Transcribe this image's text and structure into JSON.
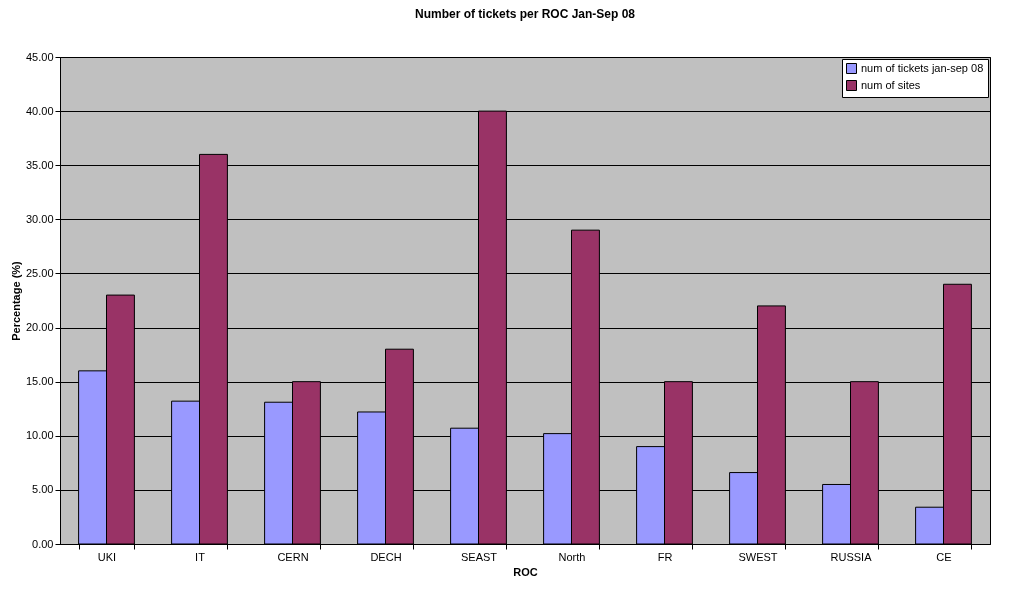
{
  "chart_data": {
    "type": "bar",
    "title": "Number of tickets per ROC Jan-Sep 08",
    "xlabel": "ROC",
    "ylabel": "Percentage (%)",
    "categories": [
      "UKI",
      "IT",
      "CERN",
      "DECH",
      "SEAST",
      "North",
      "FR",
      "SWEST",
      "RUSSIA",
      "CE"
    ],
    "series": [
      {
        "name": "num of tickets jan-sep 08",
        "color": "#9999ff",
        "values": [
          16.0,
          13.2,
          13.1,
          12.2,
          10.7,
          10.2,
          9.0,
          6.6,
          5.5,
          3.4
        ]
      },
      {
        "name": "num of sites",
        "color": "#993366",
        "values": [
          23,
          36,
          15,
          18,
          40,
          29,
          15,
          22,
          15,
          24
        ]
      }
    ],
    "ylim": [
      0,
      45
    ],
    "yticks": [
      {
        "value": 0,
        "label": "0.00"
      },
      {
        "value": 5,
        "label": "5.00"
      },
      {
        "value": 10,
        "label": "10.00"
      },
      {
        "value": 15,
        "label": "15.00"
      },
      {
        "value": 20,
        "label": "20.00"
      },
      {
        "value": 25,
        "label": "25.00"
      },
      {
        "value": 30,
        "label": "30.00"
      },
      {
        "value": 35,
        "label": "35.00"
      },
      {
        "value": 40,
        "label": "40.00"
      },
      {
        "value": 45,
        "label": "45.00"
      }
    ],
    "grid": "y",
    "legend": "top right"
  }
}
